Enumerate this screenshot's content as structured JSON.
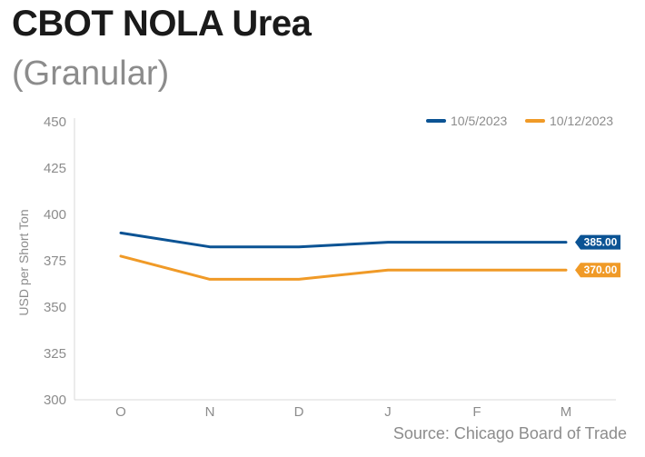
{
  "title": "CBOT NOLA Urea",
  "subtitle": "(Granular)",
  "source": "Source: Chicago Board of Trade",
  "chart_data": {
    "type": "line",
    "categories": [
      "O",
      "N",
      "D",
      "J",
      "F",
      "M"
    ],
    "ylabel": "USD per Short Ton",
    "ylim": [
      300,
      450
    ],
    "yticks": [
      300,
      325,
      350,
      375,
      400,
      425,
      450
    ],
    "grid": false,
    "legend_position": "top-right",
    "series": [
      {
        "name": "10/5/2023",
        "color": "#0b5394",
        "values": [
          390,
          382.5,
          382.5,
          385,
          385,
          385
        ],
        "end_label": "385.00"
      },
      {
        "name": "10/12/2023",
        "color": "#f09a27",
        "values": [
          377.5,
          365,
          365,
          370,
          370,
          370
        ],
        "end_label": "370.00"
      }
    ]
  }
}
